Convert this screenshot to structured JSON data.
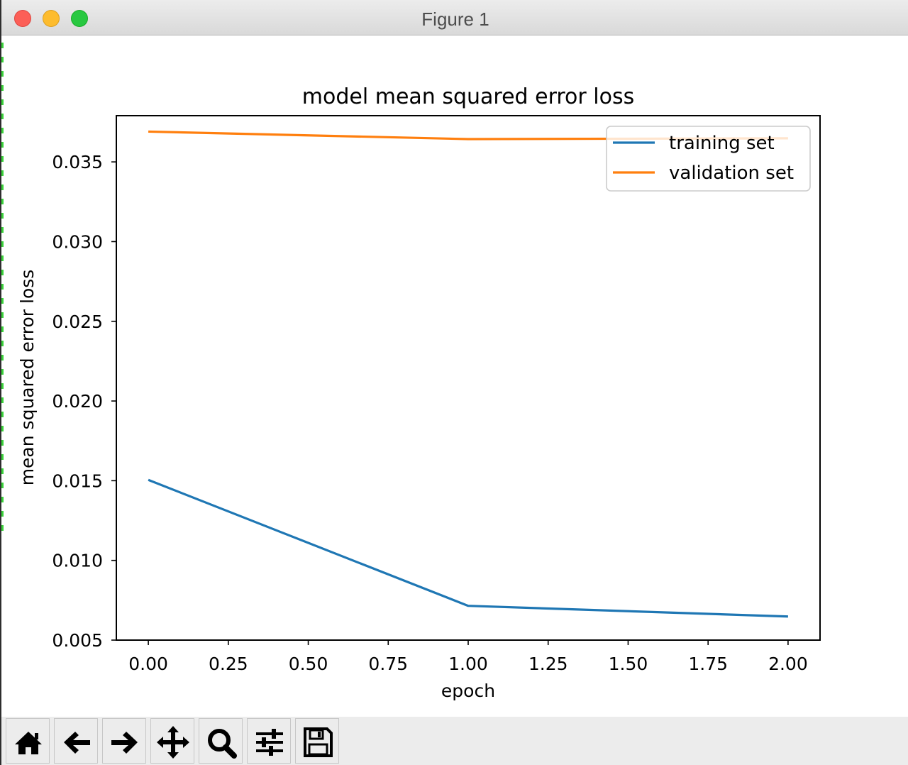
{
  "window": {
    "title": "Figure 1"
  },
  "toolbar": {
    "buttons": [
      {
        "name": "home",
        "icon": "home-icon"
      },
      {
        "name": "back",
        "icon": "arrow-left-icon"
      },
      {
        "name": "forward",
        "icon": "arrow-right-icon"
      },
      {
        "name": "pan",
        "icon": "move-icon"
      },
      {
        "name": "zoom",
        "icon": "magnifier-icon"
      },
      {
        "name": "configure-subplots",
        "icon": "sliders-icon"
      },
      {
        "name": "save",
        "icon": "floppy-disk-icon"
      }
    ]
  },
  "chart_data": {
    "type": "line",
    "title": "model mean squared error loss",
    "xlabel": "epoch",
    "ylabel": "mean squared error loss",
    "x": [
      0,
      1,
      2
    ],
    "series": [
      {
        "name": "training set",
        "values": [
          0.01505,
          0.00715,
          0.00648
        ],
        "color": "#1f77b4"
      },
      {
        "name": "validation set",
        "values": [
          0.0369,
          0.03643,
          0.03648
        ],
        "color": "#ff7f0e"
      }
    ],
    "xlim": [
      -0.1,
      2.1
    ],
    "ylim": [
      0.005,
      0.0379
    ],
    "xticks": [
      "0.00",
      "0.25",
      "0.50",
      "0.75",
      "1.00",
      "1.25",
      "1.50",
      "1.75",
      "2.00"
    ],
    "xtick_values": [
      0,
      0.25,
      0.5,
      0.75,
      1,
      1.25,
      1.5,
      1.75,
      2
    ],
    "yticks": [
      "0.005",
      "0.010",
      "0.015",
      "0.020",
      "0.025",
      "0.030",
      "0.035"
    ],
    "ytick_values": [
      0.005,
      0.01,
      0.015,
      0.02,
      0.025,
      0.03,
      0.035
    ],
    "grid": false,
    "legend_position": "upper right"
  }
}
